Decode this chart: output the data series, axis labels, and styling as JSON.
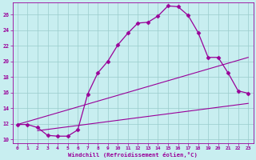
{
  "line1_x": [
    0,
    1,
    2,
    3,
    4,
    5,
    6,
    7,
    8,
    9,
    10,
    11,
    12,
    13,
    14,
    15,
    16,
    17,
    18,
    19,
    20,
    21,
    22,
    23
  ],
  "line1_y": [
    11.9,
    11.9,
    11.5,
    10.5,
    10.4,
    10.4,
    11.2,
    15.8,
    18.5,
    20.0,
    22.1,
    23.6,
    24.9,
    25.0,
    25.8,
    27.1,
    27.0,
    25.9,
    23.7,
    20.5,
    20.5,
    18.5,
    16.2,
    15.9
  ],
  "line2_x": [
    0,
    23
  ],
  "line2_y": [
    11.9,
    20.5
  ],
  "line3_x": [
    2,
    23
  ],
  "line3_y": [
    11.1,
    14.6
  ],
  "line_color": "#990099",
  "bg_color": "#c8eef0",
  "grid_color": "#99cccc",
  "xlabel": "Windchill (Refroidissement éolien,°C)",
  "xlim": [
    -0.5,
    23.5
  ],
  "ylim": [
    9.5,
    27.5
  ],
  "yticks": [
    10,
    12,
    14,
    16,
    18,
    20,
    22,
    24,
    26
  ],
  "xticks": [
    0,
    1,
    2,
    3,
    4,
    5,
    6,
    7,
    8,
    9,
    10,
    11,
    12,
    13,
    14,
    15,
    16,
    17,
    18,
    19,
    20,
    21,
    22,
    23
  ]
}
